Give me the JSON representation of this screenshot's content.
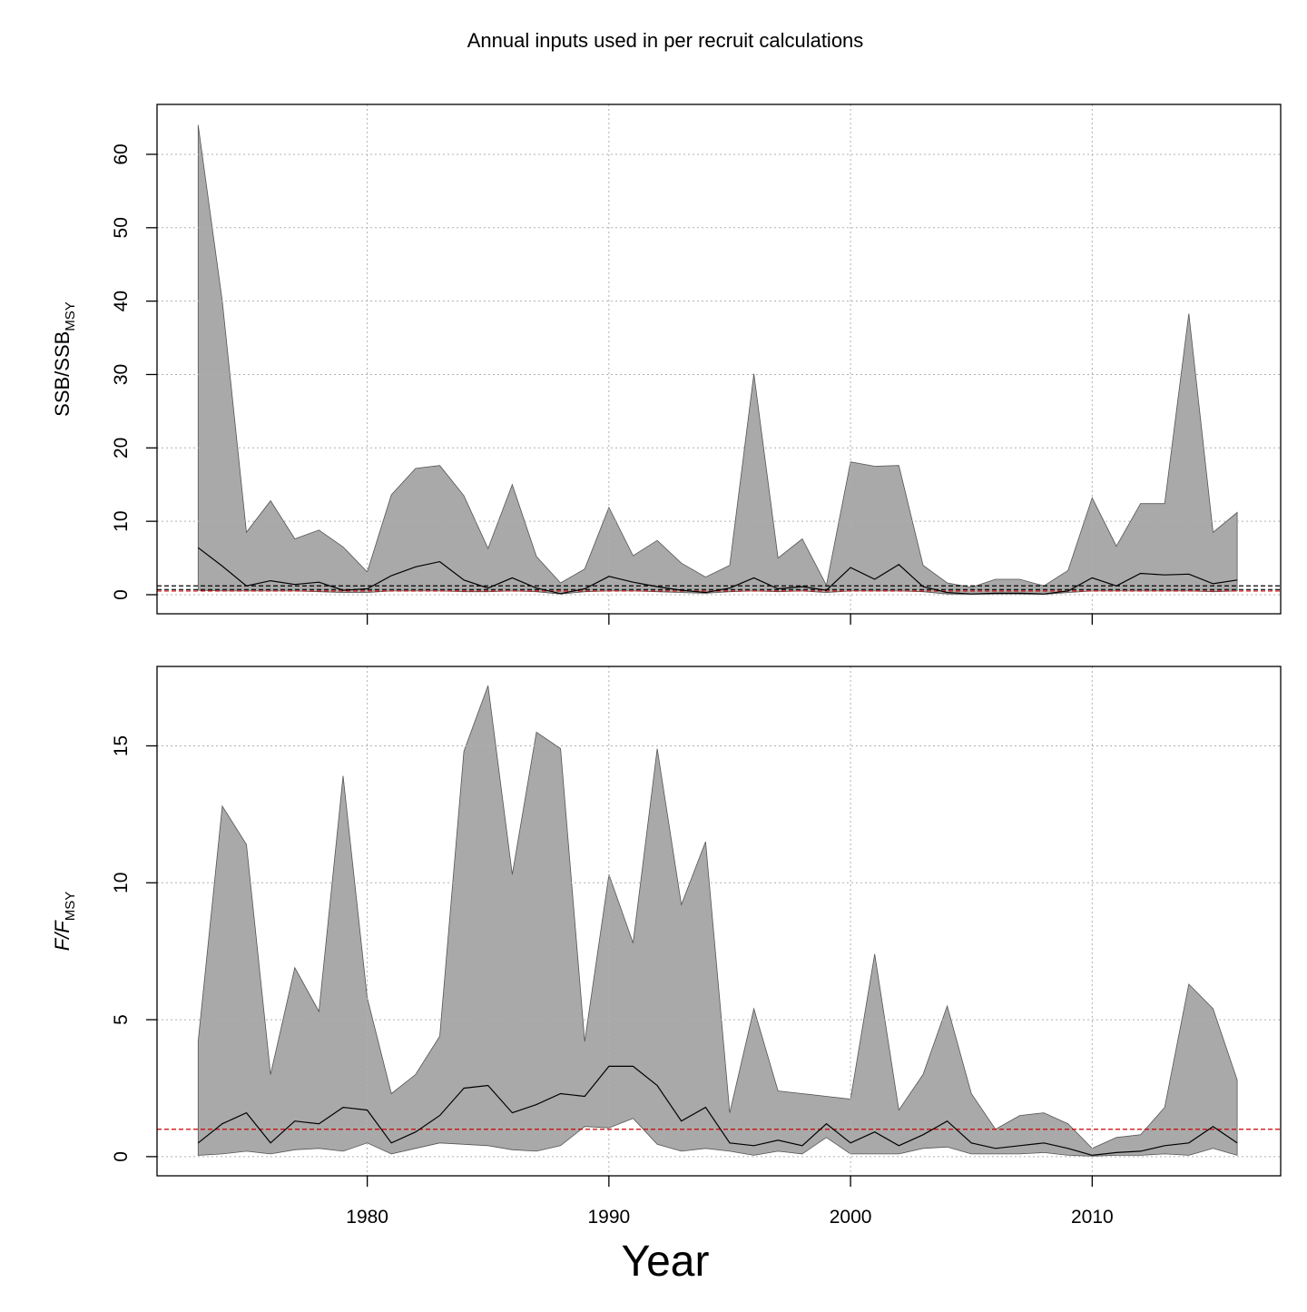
{
  "title": "Annual inputs used in per recruit calculations",
  "xlabel": "Year",
  "colors": {
    "band": "#a9a9a9",
    "median": "#000000",
    "reference": "#cc0000",
    "grid": "#b0b0b0"
  },
  "chart_data": [
    {
      "type": "area",
      "ylabel_main": "SSB/SSB",
      "ylabel_sub": "MSY",
      "xlim": [
        1971.3,
        2017.8
      ],
      "ylim": [
        -2.6,
        66.8
      ],
      "xticks": [
        1980,
        1990,
        2000,
        2010
      ],
      "yticks": [
        0,
        10,
        20,
        30,
        40,
        50,
        60
      ],
      "x_ticklabels_shown": false,
      "grid": true,
      "reference_lines": [
        {
          "y": 1.2,
          "style": "dashed",
          "color": "#000000"
        },
        {
          "y": 0.7,
          "style": "dashed",
          "color": "#000000"
        },
        {
          "y": 0.5,
          "style": "dashed",
          "color": "#cc0000"
        }
      ],
      "x": [
        1973,
        1974,
        1975,
        1976,
        1977,
        1978,
        1979,
        1980,
        1981,
        1982,
        1983,
        1984,
        1985,
        1986,
        1987,
        1988,
        1989,
        1990,
        1991,
        1992,
        1993,
        1994,
        1995,
        1996,
        1997,
        1998,
        1999,
        2000,
        2001,
        2002,
        2003,
        2004,
        2005,
        2006,
        2007,
        2008,
        2009,
        2010,
        2011,
        2012,
        2013,
        2014,
        2015,
        2016
      ],
      "upper": [
        64.0,
        40.0,
        8.5,
        12.8,
        7.6,
        8.8,
        6.5,
        3.1,
        13.6,
        17.2,
        17.6,
        13.5,
        6.3,
        15.0,
        5.2,
        1.6,
        3.5,
        11.9,
        5.3,
        7.4,
        4.3,
        2.4,
        4.0,
        30.1,
        5.0,
        7.6,
        1.3,
        18.1,
        17.5,
        17.6,
        4.0,
        1.6,
        1.0,
        2.1,
        2.1,
        1.2,
        3.3,
        13.2,
        6.6,
        12.4,
        12.4,
        38.3,
        8.5,
        11.2
      ],
      "median": [
        6.4,
        3.9,
        1.2,
        1.9,
        1.4,
        1.7,
        0.6,
        0.8,
        2.6,
        3.8,
        4.5,
        2.0,
        0.9,
        2.3,
        0.9,
        0.15,
        0.8,
        2.5,
        1.7,
        1.1,
        0.6,
        0.3,
        0.9,
        2.3,
        0.8,
        1.1,
        0.6,
        3.7,
        2.1,
        4.1,
        1.1,
        0.3,
        0.1,
        0.2,
        0.2,
        0.1,
        0.5,
        2.3,
        1.2,
        2.9,
        2.7,
        2.8,
        1.5,
        2.0
      ],
      "lower": [
        0.6,
        0.5,
        0.5,
        0.5,
        0.5,
        0.4,
        0.3,
        0.3,
        0.5,
        0.5,
        0.5,
        0.4,
        0.4,
        0.5,
        0.4,
        0.1,
        0.4,
        0.5,
        0.5,
        0.4,
        0.3,
        0.2,
        0.4,
        0.5,
        0.4,
        0.5,
        0.3,
        0.5,
        0.5,
        0.5,
        0.4,
        0.1,
        0.05,
        0.1,
        0.1,
        0.05,
        0.3,
        0.5,
        0.5,
        0.5,
        0.5,
        0.5,
        0.4,
        0.5
      ]
    },
    {
      "type": "area",
      "ylabel_main": "F/F",
      "ylabel_sub": "MSY",
      "xlim": [
        1971.3,
        2017.8
      ],
      "ylim": [
        -0.7,
        17.9
      ],
      "xticks": [
        1980,
        1990,
        2000,
        2010
      ],
      "yticks": [
        0,
        5,
        10,
        15
      ],
      "x_ticklabels_shown": true,
      "grid": true,
      "reference_lines": [
        {
          "y": 1.0,
          "style": "dashed",
          "color": "#cc0000"
        }
      ],
      "x": [
        1973,
        1974,
        1975,
        1976,
        1977,
        1978,
        1979,
        1980,
        1981,
        1982,
        1983,
        1984,
        1985,
        1986,
        1987,
        1988,
        1989,
        1990,
        1991,
        1992,
        1993,
        1994,
        1995,
        1996,
        1997,
        1998,
        1999,
        2000,
        2001,
        2002,
        2003,
        2004,
        2005,
        2006,
        2007,
        2008,
        2009,
        2010,
        2011,
        2012,
        2013,
        2014,
        2015,
        2016
      ],
      "upper": [
        4.2,
        12.8,
        11.4,
        3.0,
        6.9,
        5.3,
        13.9,
        5.8,
        2.3,
        3.0,
        4.4,
        14.8,
        17.2,
        10.3,
        15.5,
        14.9,
        4.2,
        10.3,
        7.8,
        14.9,
        9.2,
        11.5,
        1.6,
        5.4,
        2.4,
        2.3,
        2.2,
        2.1,
        7.4,
        1.7,
        3.0,
        5.5,
        2.3,
        1.0,
        1.5,
        1.6,
        1.2,
        0.3,
        0.7,
        0.8,
        1.8,
        6.3,
        5.4,
        2.8
      ],
      "median": [
        0.5,
        1.2,
        1.6,
        0.5,
        1.3,
        1.2,
        1.8,
        1.7,
        0.5,
        0.9,
        1.5,
        2.5,
        2.6,
        1.6,
        1.9,
        2.3,
        2.2,
        3.3,
        3.3,
        2.6,
        1.3,
        1.8,
        0.5,
        0.4,
        0.6,
        0.4,
        1.2,
        0.5,
        0.9,
        0.4,
        0.8,
        1.3,
        0.5,
        0.3,
        0.4,
        0.5,
        0.3,
        0.05,
        0.15,
        0.2,
        0.4,
        0.5,
        1.1,
        0.5
      ],
      "lower": [
        0.05,
        0.1,
        0.2,
        0.1,
        0.25,
        0.3,
        0.2,
        0.5,
        0.1,
        0.3,
        0.5,
        0.45,
        0.4,
        0.25,
        0.2,
        0.4,
        1.1,
        1.05,
        1.4,
        0.45,
        0.2,
        0.3,
        0.2,
        0.05,
        0.2,
        0.1,
        0.7,
        0.1,
        0.1,
        0.1,
        0.3,
        0.35,
        0.1,
        0.1,
        0.1,
        0.15,
        0.05,
        0.02,
        0.05,
        0.05,
        0.1,
        0.05,
        0.3,
        0.05
      ]
    }
  ]
}
